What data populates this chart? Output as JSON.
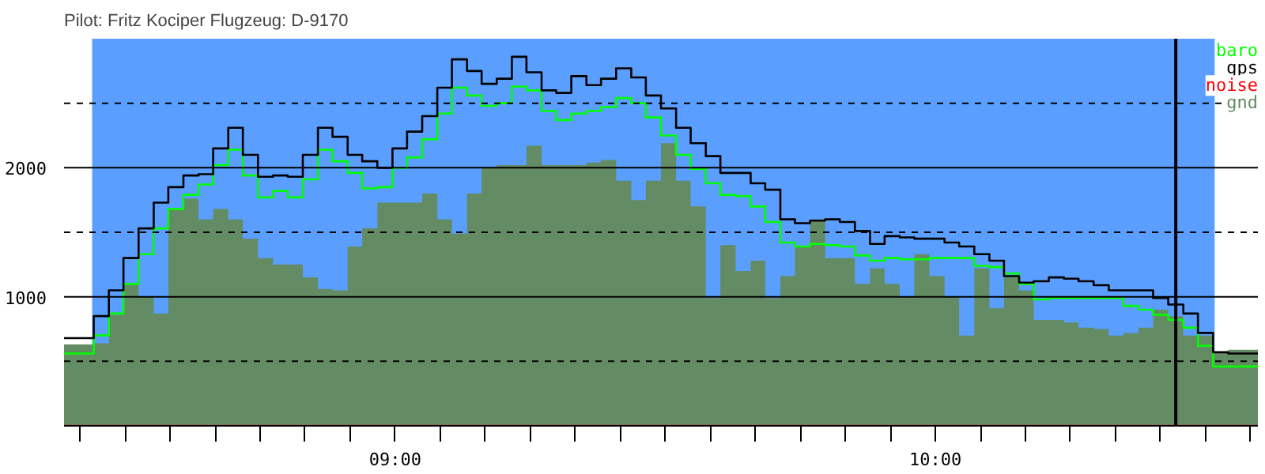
{
  "chart_data": {
    "type": "step",
    "title": "Pilot: Fritz Kociper Flugzeug: D-9170",
    "x": [
      8.387,
      8.415,
      8.442,
      8.47,
      8.497,
      8.525,
      8.553,
      8.58,
      8.608,
      8.636,
      8.663,
      8.691,
      8.718,
      8.746,
      8.774,
      8.801,
      8.829,
      8.857,
      8.884,
      8.912,
      8.939,
      8.967,
      8.995,
      9.022,
      9.05,
      9.078,
      9.105,
      9.133,
      9.16,
      9.188,
      9.216,
      9.243,
      9.271,
      9.298,
      9.326,
      9.354,
      9.381,
      9.409,
      9.437,
      9.464,
      9.492,
      9.52,
      9.547,
      9.575,
      9.602,
      9.63,
      9.658,
      9.685,
      9.713,
      9.74,
      9.768,
      9.796,
      9.823,
      9.851,
      9.879,
      9.906,
      9.934,
      9.961,
      9.989,
      10.017,
      10.044,
      10.072,
      10.1,
      10.127,
      10.155,
      10.182,
      10.21,
      10.238,
      10.265,
      10.293,
      10.321,
      10.348,
      10.376,
      10.403,
      10.431,
      10.459,
      10.486,
      10.514,
      10.542,
      10.569,
      10.597
    ],
    "series": [
      {
        "name": "gnd",
        "type": "area",
        "color": "#648c64",
        "values": [
          630,
          630,
          640,
          860,
          1100,
          1000,
          870,
          1680,
          1760,
          1600,
          1680,
          1600,
          1450,
          1300,
          1250,
          1250,
          1150,
          1060,
          1050,
          1390,
          1530,
          1730,
          1730,
          1730,
          1800,
          1600,
          1490,
          1800,
          2000,
          2020,
          2020,
          2170,
          2020,
          2020,
          2020,
          2040,
          2060,
          1900,
          1750,
          1900,
          2190,
          1900,
          1700,
          990,
          1400,
          1200,
          1280,
          990,
          1160,
          1390,
          1600,
          1300,
          1300,
          1100,
          1220,
          1100,
          1000,
          1330,
          1160,
          1000,
          700,
          1220,
          910,
          1160,
          1050,
          820,
          820,
          800,
          760,
          750,
          700,
          720,
          760,
          900,
          850,
          700,
          700,
          570,
          590,
          590,
          590
        ]
      },
      {
        "name": "baro",
        "color": "#00ff00",
        "values": [
          560,
          560,
          700,
          870,
          1100,
          1330,
          1530,
          1680,
          1790,
          1870,
          2020,
          2140,
          1940,
          1770,
          1820,
          1770,
          1910,
          2140,
          2050,
          1960,
          1840,
          1850,
          2000,
          2080,
          2220,
          2420,
          2620,
          2560,
          2480,
          2500,
          2630,
          2600,
          2440,
          2370,
          2420,
          2440,
          2470,
          2540,
          2500,
          2390,
          2250,
          2100,
          1990,
          1880,
          1790,
          1780,
          1700,
          1580,
          1420,
          1390,
          1410,
          1400,
          1390,
          1320,
          1280,
          1300,
          1290,
          1290,
          1300,
          1300,
          1300,
          1240,
          1230,
          1180,
          1100,
          980,
          990,
          990,
          990,
          990,
          990,
          930,
          900,
          860,
          820,
          760,
          620,
          460,
          460,
          460,
          460
        ]
      },
      {
        "name": "gps",
        "color": "#000000",
        "values": [
          680,
          680,
          850,
          1050,
          1300,
          1530,
          1730,
          1850,
          1940,
          1950,
          2150,
          2310,
          2100,
          1930,
          1940,
          1930,
          2100,
          2310,
          2240,
          2100,
          2050,
          2000,
          2150,
          2280,
          2400,
          2620,
          2840,
          2750,
          2650,
          2690,
          2860,
          2740,
          2600,
          2580,
          2710,
          2640,
          2690,
          2770,
          2700,
          2560,
          2460,
          2310,
          2190,
          2090,
          1960,
          1960,
          1880,
          1830,
          1600,
          1570,
          1590,
          1600,
          1580,
          1510,
          1410,
          1470,
          1460,
          1450,
          1450,
          1420,
          1390,
          1330,
          1280,
          1160,
          1110,
          1120,
          1150,
          1140,
          1120,
          1090,
          1050,
          1050,
          1050,
          990,
          940,
          870,
          720,
          570,
          560,
          560,
          560
        ]
      },
      {
        "name": "noise",
        "color": "#ff0000",
        "values": [
          null,
          null,
          null,
          null,
          null,
          null,
          null,
          null,
          null,
          null,
          null,
          null,
          null,
          null,
          null,
          null,
          null,
          null,
          null,
          null,
          null,
          null,
          null,
          null,
          null,
          null,
          null,
          null,
          null,
          null,
          null,
          null,
          null,
          null,
          null,
          null,
          null,
          null,
          null,
          null,
          null,
          null,
          null,
          null,
          null,
          null,
          null,
          null,
          null,
          null,
          null,
          null,
          null,
          null,
          null,
          null,
          null,
          null,
          null,
          null,
          null,
          null,
          null,
          null,
          null,
          null,
          null,
          null,
          null,
          null,
          null,
          null,
          null,
          null,
          null,
          null,
          null,
          null,
          null,
          null,
          null
        ]
      }
    ],
    "xlim": [
      8.387,
      10.597
    ],
    "ylim": [
      0,
      3000
    ],
    "yticks": [
      {
        "value": 500,
        "label": null
      },
      1000,
      {
        "value": 1500,
        "label": null
      },
      2000,
      {
        "value": 2500,
        "label": null
      }
    ],
    "xticks": [
      {
        "value": 8.4167,
        "label": null
      },
      {
        "value": 8.5,
        "label": null
      },
      {
        "value": 8.5833,
        "label": null
      },
      {
        "value": 8.6667,
        "label": null
      },
      {
        "value": 8.75,
        "label": null
      },
      {
        "value": 8.8333,
        "label": null
      },
      {
        "value": 8.9167,
        "label": null
      },
      {
        "value": 9,
        "label": "09:00"
      },
      {
        "value": 9.0833,
        "label": null
      },
      {
        "value": 9.1667,
        "label": null
      },
      {
        "value": 9.25,
        "label": null
      },
      {
        "value": 9.3333,
        "label": null
      },
      {
        "value": 9.4167,
        "label": null
      },
      {
        "value": 9.5,
        "label": null
      },
      {
        "value": 9.5833,
        "label": null
      },
      {
        "value": 9.6667,
        "label": null
      },
      {
        "value": 9.75,
        "label": null
      },
      {
        "value": 9.8333,
        "label": null
      },
      {
        "value": 9.9167,
        "label": null
      },
      {
        "value": 10,
        "label": "10:00"
      },
      {
        "value": 10.0833,
        "label": null
      },
      {
        "value": 10.1667,
        "label": null
      },
      {
        "value": 10.25,
        "label": null
      },
      {
        "value": 10.3333,
        "label": null
      },
      {
        "value": 10.4167,
        "label": null
      },
      {
        "value": 10.5,
        "label": null
      },
      {
        "value": 10.5833,
        "label": null
      }
    ],
    "bands": [
      {
        "axis": "x",
        "from": 8.439,
        "to": 10.517,
        "color": "#5a9eff"
      }
    ],
    "ref_lines": [
      {
        "axis": "x",
        "value": 10.445,
        "color": "#000000"
      }
    ],
    "grid": "y",
    "legend": "top right"
  }
}
